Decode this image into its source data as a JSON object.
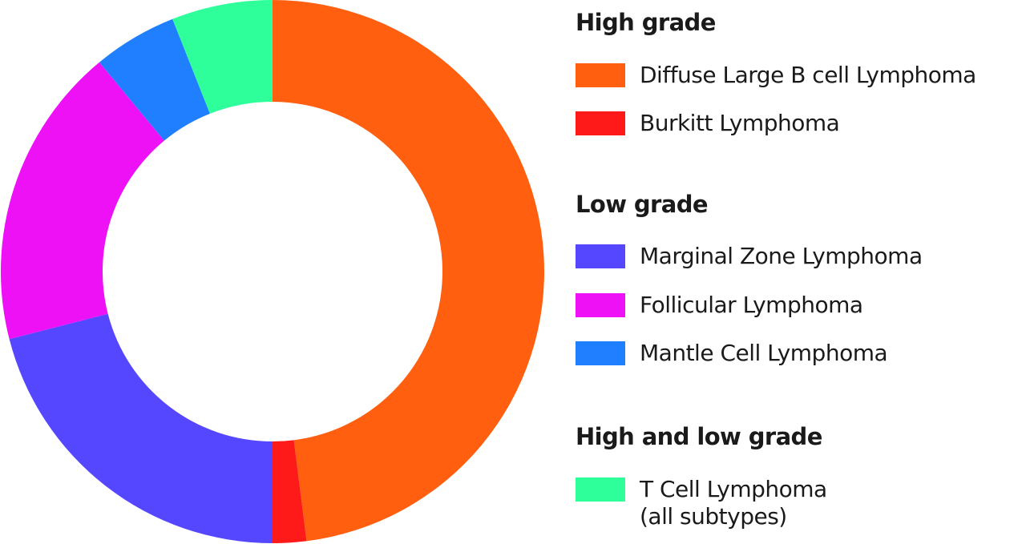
{
  "chart_data": {
    "type": "pie",
    "donut": true,
    "title": "",
    "slices": [
      {
        "label": "Diffuse Large B cell Lymphoma",
        "value": 48.0,
        "color": "#FF5F0F"
      },
      {
        "label": "Burkitt Lymphoma",
        "value": 2.0,
        "color": "#FF1A1A"
      },
      {
        "label": "Marginal Zone Lymphoma",
        "value": 21.0,
        "color": "#5547FF"
      },
      {
        "label": "Follicular Lymphoma",
        "value": 18.0,
        "color": "#EE11F5"
      },
      {
        "label": "Mantle Cell Lymphoma",
        "value": 5.0,
        "color": "#1F7FFF"
      },
      {
        "label": "T Cell Lymphoma (all subtypes)",
        "value": 6.0,
        "color": "#2EFF9A"
      }
    ],
    "legend_placement": "right"
  },
  "legend": {
    "groups": [
      {
        "heading": "High grade",
        "items": [
          {
            "label": "Diffuse Large B cell Lymphoma",
            "color": "#FF5F0F"
          },
          {
            "label": "Burkitt Lymphoma",
            "color": "#FF1A1A"
          }
        ]
      },
      {
        "heading": "Low grade",
        "items": [
          {
            "label": "Marginal Zone Lymphoma",
            "color": "#5547FF"
          },
          {
            "label": "Follicular Lymphoma",
            "color": "#EE11F5"
          },
          {
            "label": "Mantle Cell Lymphoma",
            "color": "#1F7FFF"
          }
        ]
      },
      {
        "heading": "High and low grade",
        "items": [
          {
            "label": "T Cell Lymphoma",
            "sublabel": "(all subtypes)",
            "color": "#2EFF9A"
          }
        ]
      }
    ]
  }
}
